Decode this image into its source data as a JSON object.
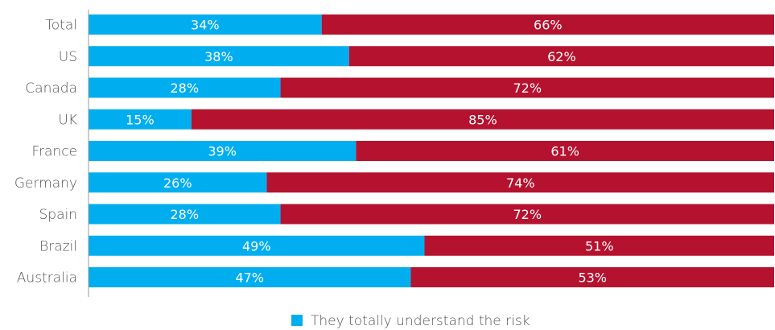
{
  "chart_data": {
    "type": "bar",
    "orientation": "horizontal",
    "stacked": true,
    "title": "",
    "xlabel": "",
    "ylabel": "",
    "xlim": [
      0,
      100
    ],
    "grid": false,
    "categories": [
      "Total",
      "US",
      "Canada",
      "UK",
      "France",
      "Germany",
      "Spain",
      "Brazil",
      "Australia"
    ],
    "series": [
      {
        "name": "They totally understand the risk",
        "color": "#00aeef",
        "values": [
          34,
          38,
          28,
          15,
          39,
          26,
          28,
          49,
          47
        ],
        "labels": [
          "34%",
          "38%",
          "28%",
          "15%",
          "39%",
          "26%",
          "28%",
          "49%",
          "47%"
        ]
      },
      {
        "color": "#b5122f",
        "values": [
          66,
          62,
          72,
          85,
          61,
          74,
          72,
          51,
          53
        ],
        "labels": [
          "66%",
          "62%",
          "72%",
          "85%",
          "61%",
          "74%",
          "72%",
          "51%",
          "53%"
        ]
      }
    ],
    "legend": {
      "position": "bottom-center",
      "entries": [
        "They totally understand the risk"
      ]
    }
  }
}
